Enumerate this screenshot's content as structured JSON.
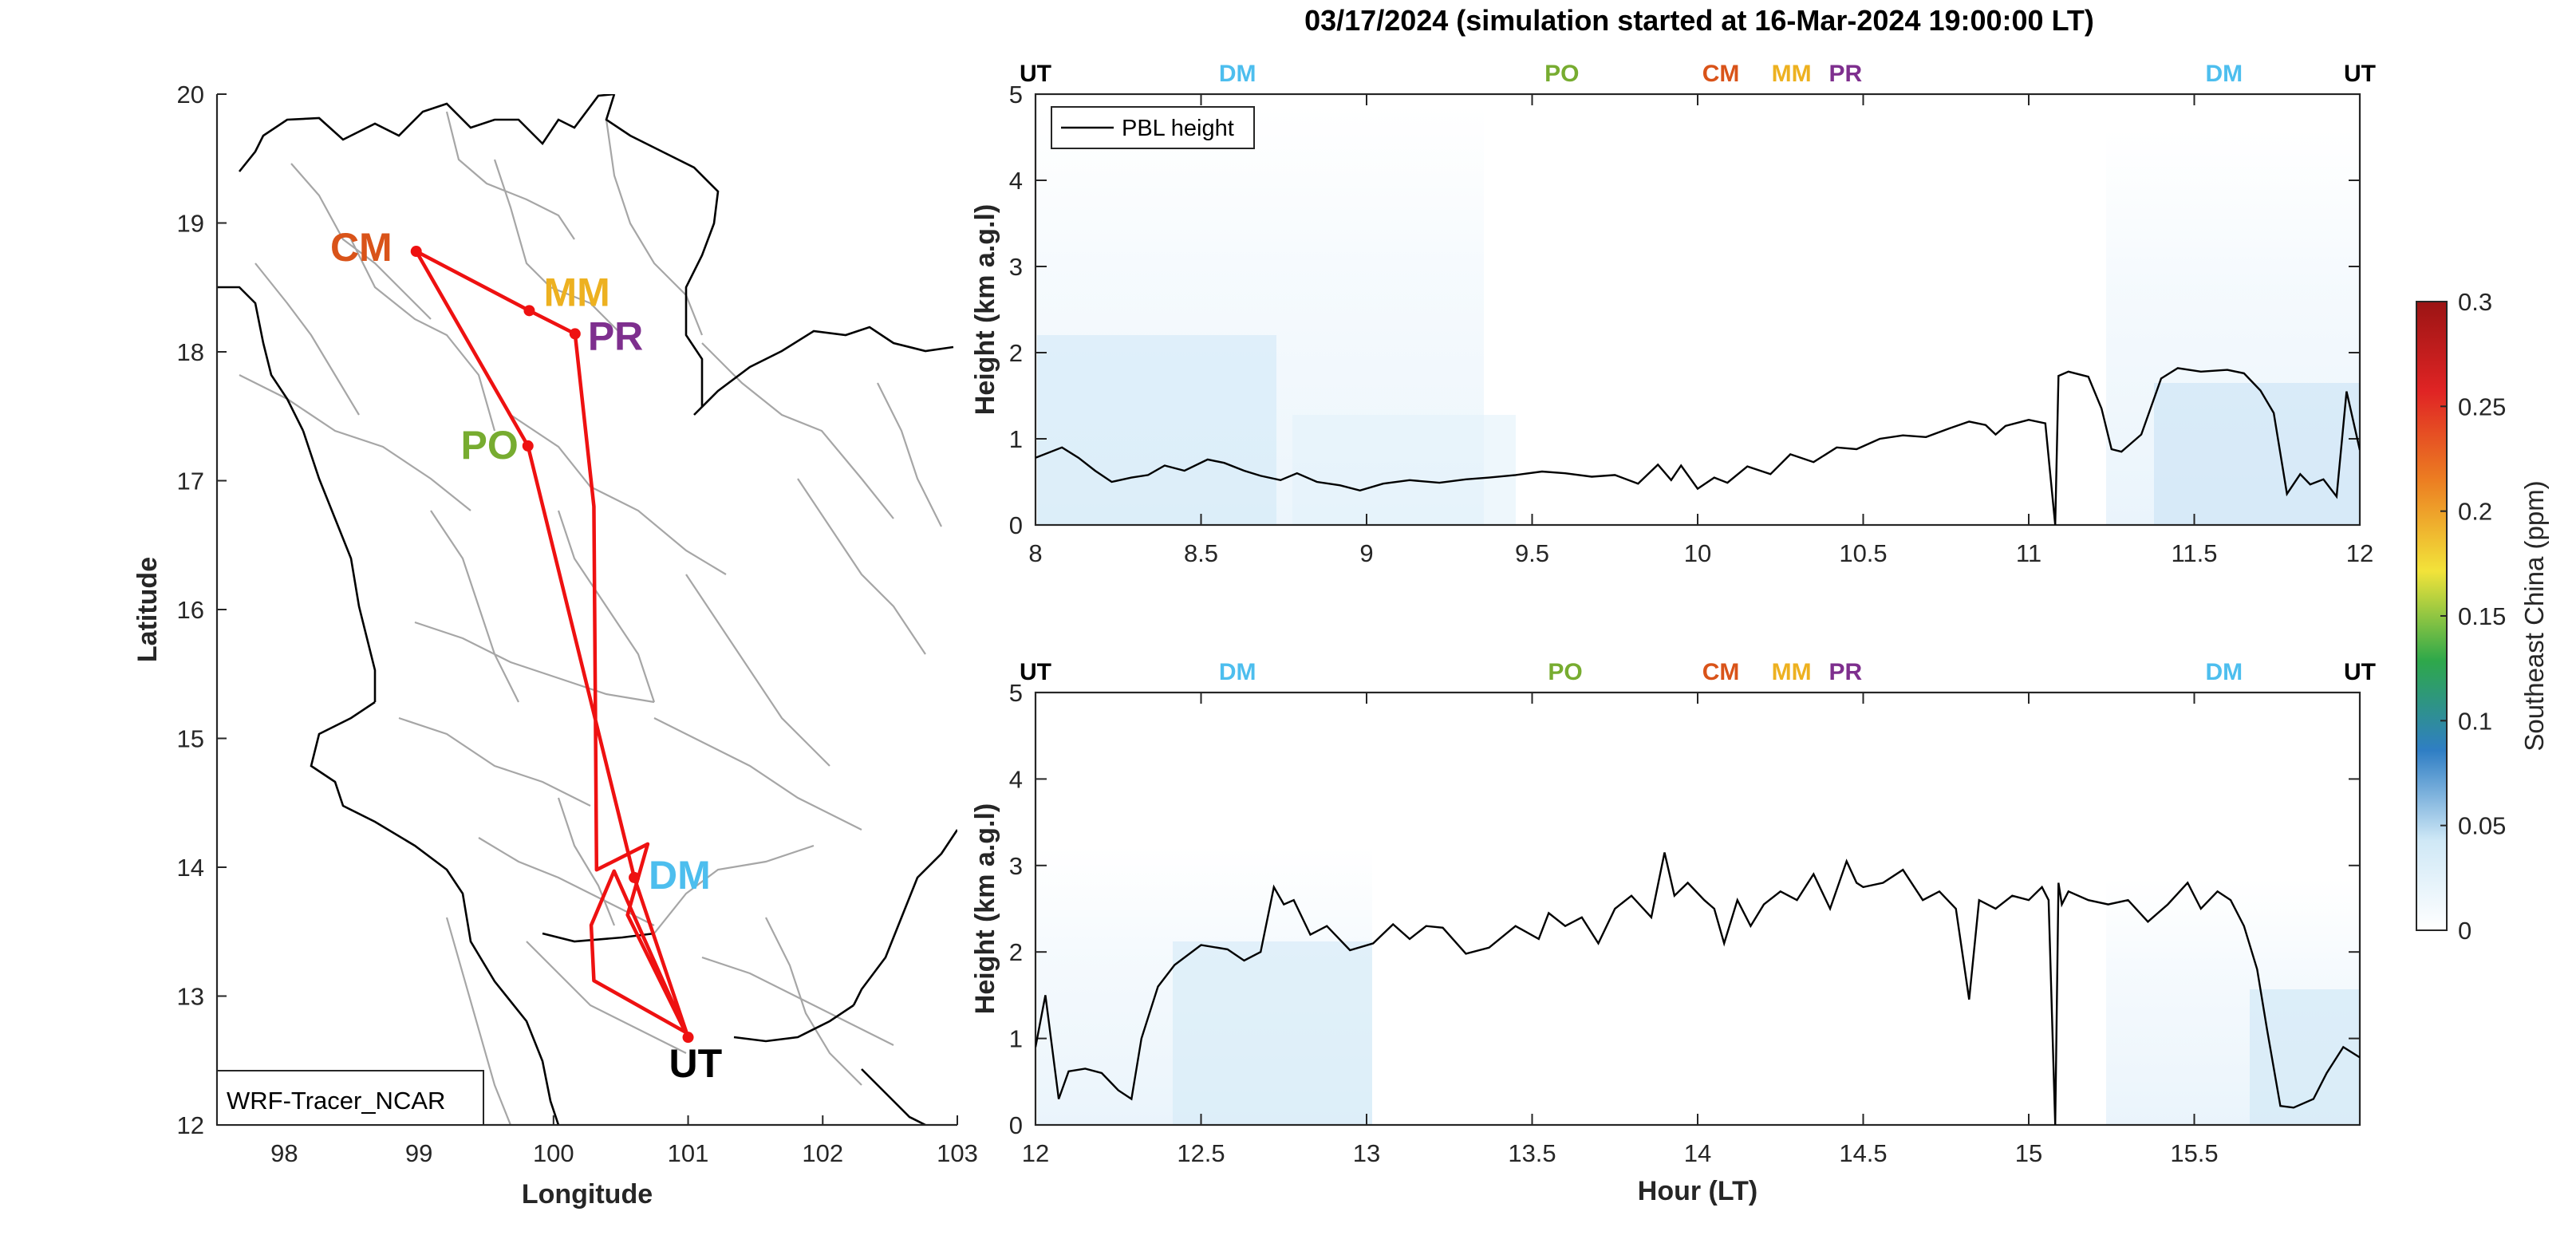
{
  "title": "03/17/2024 (simulation started at 16-Mar-2024 19:00:00 LT)",
  "colors": {
    "CM": "#d95319",
    "MM": "#edb120",
    "PR": "#7e2f8e",
    "PO": "#77ac30",
    "DM": "#4dbeee",
    "UT": "#000000",
    "route": "#ee1111",
    "pbl": "#000000",
    "boundary": "#000000",
    "province": "#a0a0a0"
  },
  "chart_data": [
    {
      "type": "map",
      "xlabel": "Longitude",
      "ylabel": "Latitude",
      "xlim": [
        97.5,
        103
      ],
      "ylim": [
        12,
        20
      ],
      "xticks": [
        "98",
        "99",
        "100",
        "101",
        "102",
        "103"
      ],
      "yticks": [
        "12",
        "13",
        "14",
        "15",
        "16",
        "17",
        "18",
        "19",
        "20"
      ],
      "stamp": "WRF-Tracer_NCAR",
      "sites": [
        {
          "code": "CM",
          "lon": 98.98,
          "lat": 18.78
        },
        {
          "code": "MM",
          "lon": 99.82,
          "lat": 18.32
        },
        {
          "code": "PR",
          "lon": 100.16,
          "lat": 18.14
        },
        {
          "code": "PO",
          "lon": 99.81,
          "lat": 17.27
        },
        {
          "code": "DM",
          "lon": 100.6,
          "lat": 13.92
        },
        {
          "code": "UT",
          "lon": 101.0,
          "lat": 12.68
        }
      ],
      "route": [
        [
          101.0,
          12.68
        ],
        [
          100.6,
          13.92
        ],
        [
          99.81,
          17.27
        ],
        [
          98.98,
          18.78
        ],
        [
          99.82,
          18.32
        ],
        [
          100.16,
          18.14
        ],
        [
          100.3,
          16.8
        ],
        [
          100.32,
          13.98
        ],
        [
          100.7,
          14.18
        ],
        [
          100.55,
          13.63
        ],
        [
          100.98,
          12.72
        ],
        [
          100.3,
          13.12
        ],
        [
          100.28,
          13.55
        ],
        [
          100.45,
          13.97
        ],
        [
          101.0,
          12.68
        ]
      ]
    },
    {
      "type": "line",
      "ylabel": "Height (km a.g.l)",
      "xlabel": "",
      "xlim": [
        8,
        12
      ],
      "ylim": [
        0,
        5
      ],
      "xticks": [
        "8",
        "8.5",
        "9",
        "9.5",
        "10",
        "10.5",
        "11",
        "11.5",
        "12"
      ],
      "yticks": [
        "0",
        "1",
        "2",
        "3",
        "4",
        "5"
      ],
      "top_labels": [
        {
          "code": "UT",
          "x": 8.0
        },
        {
          "code": "DM",
          "x": 8.61
        },
        {
          "code": "PO",
          "x": 9.59
        },
        {
          "code": "CM",
          "x": 10.07
        },
        {
          "code": "MM",
          "x": 10.31
        },
        {
          "code": "PR",
          "x": 10.43
        },
        {
          "code": "DM",
          "x": 11.59
        },
        {
          "code": "UT",
          "x": 12.0
        }
      ],
      "legend": "PBL height",
      "series": [
        {
          "name": "PBL height",
          "x": [
            8.0,
            8.08,
            8.13,
            8.18,
            8.23,
            8.29,
            8.34,
            8.39,
            8.45,
            8.52,
            8.57,
            8.63,
            8.68,
            8.74,
            8.79,
            8.85,
            8.92,
            8.98,
            9.05,
            9.13,
            9.22,
            9.3,
            9.37,
            9.45,
            9.53,
            9.6,
            9.68,
            9.75,
            9.82,
            9.88,
            9.92,
            9.95,
            10.0,
            10.05,
            10.09,
            10.15,
            10.22,
            10.28,
            10.35,
            10.42,
            10.48,
            10.55,
            10.62,
            10.69,
            10.76,
            10.82,
            10.87,
            10.9,
            10.93,
            11.0,
            11.05,
            11.08,
            11.09,
            11.12,
            11.18,
            11.22,
            11.25,
            11.28,
            11.34,
            11.4,
            11.45,
            11.52,
            11.6,
            11.65,
            11.7,
            11.74,
            11.78,
            11.82,
            11.85,
            11.89,
            11.93,
            11.96,
            12.0
          ],
          "y": [
            0.78,
            0.9,
            0.78,
            0.63,
            0.5,
            0.55,
            0.58,
            0.69,
            0.63,
            0.76,
            0.72,
            0.63,
            0.57,
            0.52,
            0.6,
            0.5,
            0.46,
            0.4,
            0.48,
            0.52,
            0.49,
            0.53,
            0.55,
            0.58,
            0.62,
            0.6,
            0.56,
            0.58,
            0.48,
            0.7,
            0.52,
            0.69,
            0.42,
            0.55,
            0.49,
            0.68,
            0.59,
            0.82,
            0.73,
            0.9,
            0.88,
            1.0,
            1.04,
            1.02,
            1.12,
            1.2,
            1.16,
            1.05,
            1.15,
            1.22,
            1.18,
            0.0,
            1.73,
            1.78,
            1.72,
            1.35,
            0.88,
            0.85,
            1.05,
            1.7,
            1.82,
            1.78,
            1.8,
            1.76,
            1.56,
            1.3,
            0.36,
            0.59,
            0.47,
            0.53,
            0.33,
            1.55,
            0.87
          ]
        }
      ]
    },
    {
      "type": "line",
      "ylabel": "Height (km a.g.l)",
      "xlabel": "Hour (LT)",
      "xlim": [
        12,
        16
      ],
      "ylim": [
        0,
        5
      ],
      "xticks": [
        "12",
        "12.5",
        "13",
        "13.5",
        "14",
        "14.5",
        "15",
        "15.5"
      ],
      "yticks": [
        "0",
        "1",
        "2",
        "3",
        "4",
        "5"
      ],
      "top_labels": [
        {
          "code": "UT",
          "x": 12.0
        },
        {
          "code": "DM",
          "x": 12.61
        },
        {
          "code": "PO",
          "x": 13.6
        },
        {
          "code": "CM",
          "x": 14.07
        },
        {
          "code": "MM",
          "x": 14.31
        },
        {
          "code": "PR",
          "x": 14.43
        },
        {
          "code": "DM",
          "x": 15.59
        },
        {
          "code": "UT",
          "x": 16.0
        }
      ],
      "series": [
        {
          "name": "PBL height",
          "x": [
            12.0,
            12.03,
            12.07,
            12.1,
            12.15,
            12.2,
            12.25,
            12.29,
            12.32,
            12.37,
            12.42,
            12.5,
            12.58,
            12.63,
            12.68,
            12.72,
            12.75,
            12.78,
            12.83,
            12.88,
            12.95,
            13.02,
            13.08,
            13.13,
            13.18,
            13.23,
            13.3,
            13.37,
            13.45,
            13.52,
            13.55,
            13.6,
            13.65,
            13.7,
            13.75,
            13.8,
            13.86,
            13.9,
            13.93,
            13.97,
            14.02,
            14.05,
            14.08,
            14.12,
            14.16,
            14.2,
            14.25,
            14.3,
            14.35,
            14.4,
            14.45,
            14.48,
            14.5,
            14.56,
            14.62,
            14.68,
            14.73,
            14.78,
            14.82,
            14.85,
            14.9,
            14.95,
            15.0,
            15.04,
            15.06,
            15.08,
            15.09,
            15.1,
            15.12,
            15.18,
            15.24,
            15.3,
            15.36,
            15.42,
            15.48,
            15.52,
            15.57,
            15.61,
            15.65,
            15.69,
            15.72,
            15.76,
            15.8,
            15.86,
            15.9,
            15.95,
            16.0
          ],
          "y": [
            0.9,
            1.5,
            0.3,
            0.62,
            0.65,
            0.6,
            0.4,
            0.3,
            1.0,
            1.6,
            1.85,
            2.08,
            2.03,
            1.9,
            2.0,
            2.75,
            2.55,
            2.6,
            2.2,
            2.3,
            2.02,
            2.1,
            2.32,
            2.15,
            2.3,
            2.28,
            1.98,
            2.05,
            2.3,
            2.15,
            2.45,
            2.3,
            2.4,
            2.1,
            2.5,
            2.65,
            2.4,
            3.15,
            2.65,
            2.8,
            2.6,
            2.5,
            2.1,
            2.6,
            2.3,
            2.55,
            2.7,
            2.6,
            2.9,
            2.5,
            3.05,
            2.8,
            2.75,
            2.8,
            2.95,
            2.6,
            2.7,
            2.5,
            1.45,
            2.6,
            2.5,
            2.65,
            2.6,
            2.75,
            2.6,
            0.0,
            2.8,
            2.55,
            2.7,
            2.6,
            2.55,
            2.6,
            2.35,
            2.55,
            2.8,
            2.5,
            2.7,
            2.6,
            2.3,
            1.8,
            1.1,
            0.22,
            0.2,
            0.3,
            0.6,
            0.9,
            0.78
          ]
        }
      ]
    },
    {
      "type": "colorbar",
      "label": "Southeast China (ppm)",
      "range": [
        0,
        0.3
      ],
      "ticks": [
        "0",
        "0.05",
        "0.1",
        "0.15",
        "0.2",
        "0.25",
        "0.3"
      ],
      "tick_values": [
        0,
        0.05,
        0.1,
        0.15,
        0.2,
        0.25,
        0.3
      ],
      "stops": [
        "#ffffff",
        "#cfe8f6",
        "#2f7ec4",
        "#2ea84a",
        "#f2e33a",
        "#ec7f22",
        "#e02424",
        "#9b1414"
      ]
    }
  ]
}
